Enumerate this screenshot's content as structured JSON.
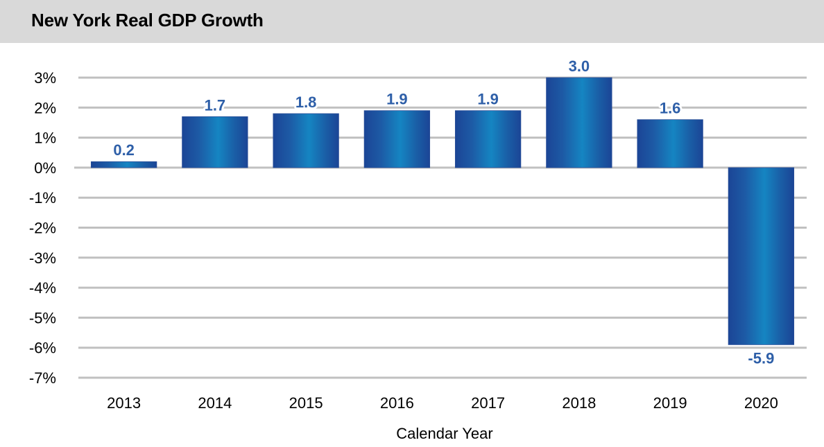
{
  "chart_data": {
    "type": "bar",
    "title": "New York Real GDP Growth",
    "categories": [
      "2013",
      "2014",
      "2015",
      "2016",
      "2017",
      "2018",
      "2019",
      "2020"
    ],
    "values": [
      0.2,
      1.7,
      1.8,
      1.9,
      1.9,
      3.0,
      1.6,
      -5.9
    ],
    "data_labels": [
      "0.2",
      "1.7",
      "1.8",
      "1.9",
      "1.9",
      "3.0",
      "1.6",
      "-5.9"
    ],
    "xlabel": "Calendar Year",
    "ylabel": "",
    "ylim": [
      -7,
      3
    ],
    "yticks": [
      3,
      2,
      1,
      0,
      -1,
      -2,
      -3,
      -4,
      -5,
      -6,
      -7
    ],
    "ytick_labels": [
      "3%",
      "2%",
      "1%",
      "0%",
      "-1%",
      "-2%",
      "-3%",
      "-4%",
      "-5%",
      "-6%",
      "-7%"
    ],
    "grid": true,
    "legend": "none",
    "colors": {
      "bar_edge": "#1b4a9a",
      "bar_center": "#1880c0",
      "label": "#2e5fa8",
      "grid": "#c0c0c0",
      "title_bar": "#d9d9d9"
    }
  }
}
